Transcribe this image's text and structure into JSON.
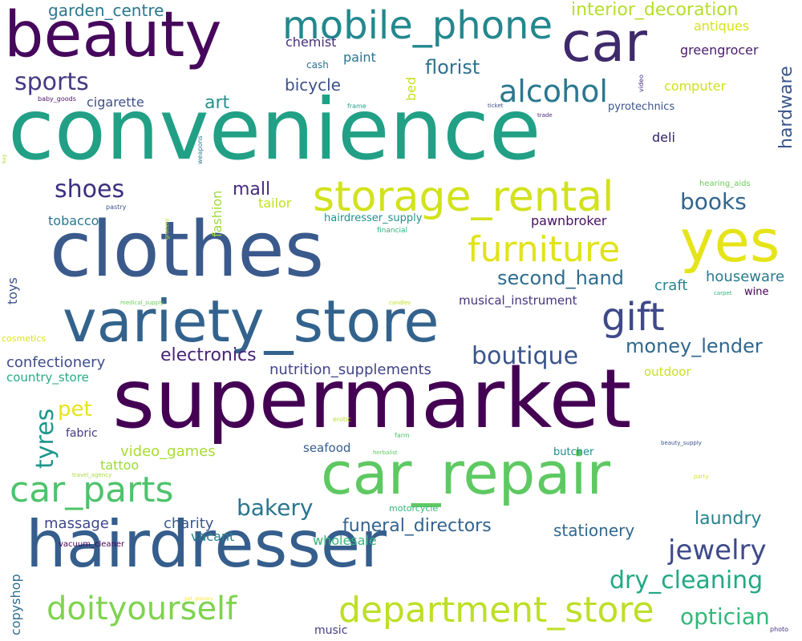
{
  "words": [
    {
      "text": "convenience",
      "color": "#21a086"
    },
    {
      "text": "clothes",
      "color": "#3b5a8c"
    },
    {
      "text": "supermarket",
      "color": "#440154"
    },
    {
      "text": "hairdresser",
      "color": "#355e8d"
    },
    {
      "text": "car_repair",
      "color": "#5ec962"
    },
    {
      "text": "variety_store",
      "color": "#33638d"
    },
    {
      "text": "beauty",
      "color": "#46085c"
    },
    {
      "text": "car",
      "color": "#3e2a6b"
    },
    {
      "text": "yes",
      "color": "#e5e419"
    },
    {
      "text": "storage_rental",
      "color": "#d2e21b"
    },
    {
      "text": "mobile_phone",
      "color": "#23888e"
    },
    {
      "text": "furniture",
      "color": "#e1e31a"
    },
    {
      "text": "gift",
      "color": "#3e4989"
    },
    {
      "text": "car_parts",
      "color": "#4ec36b"
    },
    {
      "text": "department_store",
      "color": "#bddf26"
    },
    {
      "text": "doityourself",
      "color": "#7fd34e"
    },
    {
      "text": "alcohol",
      "color": "#2a788e"
    },
    {
      "text": "jewelry",
      "color": "#3e4a89"
    },
    {
      "text": "sports",
      "color": "#443a83"
    },
    {
      "text": "shoes",
      "color": "#3b2f80"
    },
    {
      "text": "boutique",
      "color": "#3a548c"
    },
    {
      "text": "money_lender",
      "color": "#31688e"
    },
    {
      "text": "dry_cleaning",
      "color": "#22a884"
    },
    {
      "text": "optician",
      "color": "#35b779"
    },
    {
      "text": "bakery",
      "color": "#2b758e"
    },
    {
      "text": "tyres",
      "color": "#1f968b"
    },
    {
      "text": "books",
      "color": "#31658e"
    },
    {
      "text": "second_hand",
      "color": "#2f6c8e"
    },
    {
      "text": "electronics",
      "color": "#482475"
    },
    {
      "text": "pet",
      "color": "#e7e419"
    },
    {
      "text": "hardware",
      "color": "#39568c"
    },
    {
      "text": "florist",
      "color": "#2c728e"
    },
    {
      "text": "interior_decoration",
      "color": "#b5de2b"
    },
    {
      "text": "garden_centre",
      "color": "#2a788e"
    },
    {
      "text": "funeral_directors",
      "color": "#33628d"
    },
    {
      "text": "laundry",
      "color": "#26828e"
    },
    {
      "text": "stationery",
      "color": "#31688e"
    },
    {
      "text": "art",
      "color": "#20938c"
    },
    {
      "text": "bicycle",
      "color": "#3c4f8a"
    },
    {
      "text": "mall",
      "color": "#472d7b"
    },
    {
      "text": "nutrition_supplements",
      "color": "#414487"
    },
    {
      "text": "confectionery",
      "color": "#3e4c8a"
    },
    {
      "text": "video_games",
      "color": "#a8db34"
    },
    {
      "text": "charity",
      "color": "#38588c"
    },
    {
      "text": "houseware",
      "color": "#29798e"
    },
    {
      "text": "craft",
      "color": "#25858e"
    },
    {
      "text": "massage",
      "color": "#3f4788"
    },
    {
      "text": "antiques",
      "color": "#d8e219"
    },
    {
      "text": "greengrocer",
      "color": "#481b6d"
    },
    {
      "text": "chemist",
      "color": "#472c7a"
    },
    {
      "text": "paint",
      "color": "#2c728e"
    },
    {
      "text": "cigarette",
      "color": "#3d4e8a"
    },
    {
      "text": "tobacco",
      "color": "#2a768e"
    },
    {
      "text": "country_store",
      "color": "#25ab82"
    },
    {
      "text": "fabric",
      "color": "#443983"
    },
    {
      "text": "tattoo",
      "color": "#9bd93c"
    },
    {
      "text": "vacant",
      "color": "#277f8e"
    },
    {
      "text": "wholesale",
      "color": "#35b779"
    },
    {
      "text": "copyshop",
      "color": "#2f6c8e"
    },
    {
      "text": "music",
      "color": "#433e85"
    },
    {
      "text": "deli",
      "color": "#2e1e6b"
    },
    {
      "text": "pawnbroker",
      "color": "#471063"
    },
    {
      "text": "computer",
      "color": "#d0e11c"
    },
    {
      "text": "pyrotechnics",
      "color": "#3a538b"
    },
    {
      "text": "musical_instrument",
      "color": "#46337e"
    },
    {
      "text": "wine",
      "color": "#440154"
    },
    {
      "text": "outdoor",
      "color": "#cae11f"
    },
    {
      "text": "seafood",
      "color": "#365c8d"
    },
    {
      "text": "butcher",
      "color": "#23898e"
    },
    {
      "text": "toys",
      "color": "#3b528b"
    },
    {
      "text": "tailor",
      "color": "#c2df23"
    },
    {
      "text": "fashion",
      "color": "#a0da39"
    },
    {
      "text": "bed",
      "color": "#c8e020"
    },
    {
      "text": "hairdresser_supply",
      "color": "#21918c"
    },
    {
      "text": "cash",
      "color": "#2d718e"
    },
    {
      "text": "hearing_aids",
      "color": "#6ccd5a"
    },
    {
      "text": "financial",
      "color": "#2cb17e"
    },
    {
      "text": "cosmetics",
      "color": "#dde318"
    },
    {
      "text": "motorcycle",
      "color": "#32b67a"
    },
    {
      "text": "vacuum_cleaner",
      "color": "#440154"
    },
    {
      "text": "pastry",
      "color": "#3b528b"
    },
    {
      "text": "baby_goods",
      "color": "#481769"
    },
    {
      "text": "frame",
      "color": "#20a386"
    },
    {
      "text": "ticket",
      "color": "#3c4f8a"
    },
    {
      "text": "trade",
      "color": "#482878"
    },
    {
      "text": "video",
      "color": "#46327e"
    },
    {
      "text": "weapons",
      "color": "#2a788e"
    },
    {
      "text": "bag",
      "color": "#addc30"
    },
    {
      "text": "grocery",
      "color": "#bddf26"
    },
    {
      "text": "medical_supply",
      "color": "#6ccd5a"
    },
    {
      "text": "candles",
      "color": "#bddf26"
    },
    {
      "text": "carpet",
      "color": "#2fb47c"
    },
    {
      "text": "erotic",
      "color": "#b5de2b"
    },
    {
      "text": "farm",
      "color": "#4ac16d"
    },
    {
      "text": "herbalist",
      "color": "#5ec962"
    },
    {
      "text": "beauty_supply",
      "color": "#3b528b"
    },
    {
      "text": "travel_agency",
      "color": "#a5db36"
    },
    {
      "text": "party",
      "color": "#d8e219"
    },
    {
      "text": "pet_grocery",
      "color": "#fde725"
    },
    {
      "text": "photo",
      "color": "#46337e"
    }
  ]
}
